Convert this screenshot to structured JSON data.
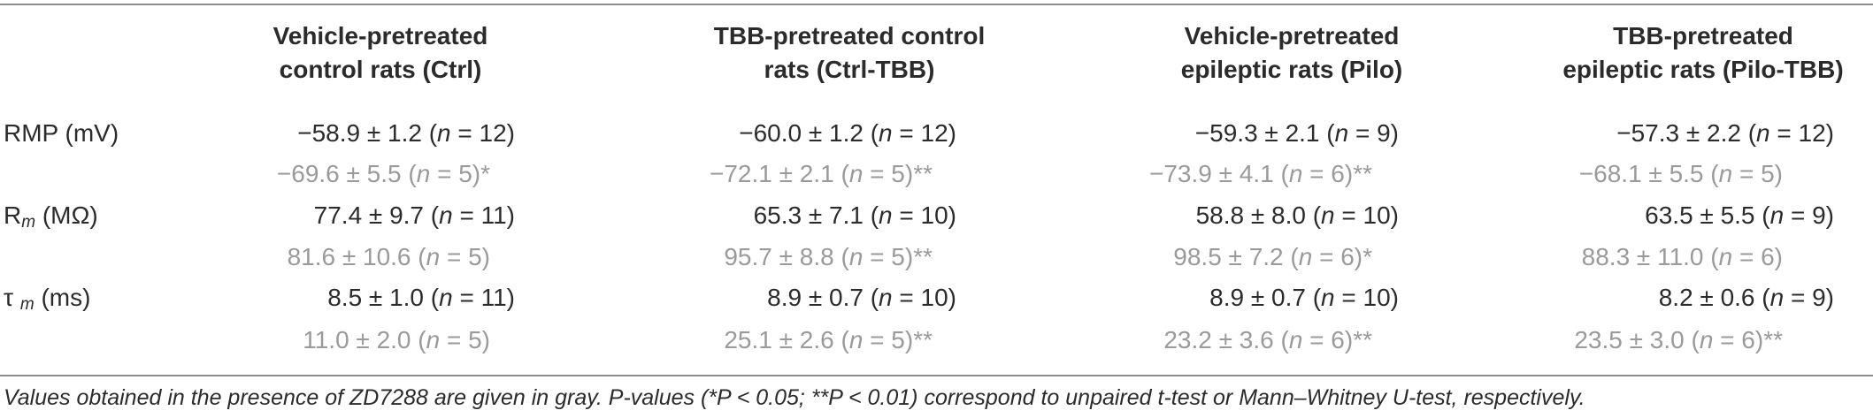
{
  "columns": [
    {
      "line1": "Vehicle-pretreated",
      "line2": "control rats (Ctrl)"
    },
    {
      "line1": "TBB-pretreated control",
      "line2": "rats (Ctrl-TBB)"
    },
    {
      "line1": "Vehicle-pretreated",
      "line2": "epileptic rats (Pilo)"
    },
    {
      "line1": "TBB-pretreated",
      "line2": "epileptic rats (Pilo-TBB)"
    }
  ],
  "rows": [
    {
      "label_main": "RMP (mV)",
      "label_sub": "",
      "label_unit": "",
      "values": [
        "−58.9 ± 1.2 (n  =  12)",
        "−60.0 ± 1.2 (n  =  12)",
        "−59.3 ± 2.1 (n  =  9)",
        "−57.3 ± 2.2 (n  =  12)"
      ],
      "gray_values": [
        "−69.6 ± 5.5 (n = 5)*",
        "−72.1 ± 2.1 (n = 5)**",
        "−73.9 ± 4.1 (n = 6)**",
        "−68.1 ± 5.5 (n = 5)"
      ]
    },
    {
      "label_main": "R",
      "label_sub": "m",
      "label_unit": " (MΩ)",
      "values": [
        "77.4 ± 9.7 (n  =  11)",
        "65.3 ± 7.1 (n  =  10)",
        "58.8 ± 8.0 (n  =  10)",
        "63.5 ± 5.5 (n  =  9)"
      ],
      "gray_values": [
        "81.6 ± 10.6 (n = 5)",
        "95.7 ± 8.8 (n = 5)**",
        "98.5 ± 7.2 (n = 6)*",
        "88.3 ± 11.0 (n = 6)"
      ]
    },
    {
      "label_main": "τ ",
      "label_sub": "m",
      "label_unit": " (ms)",
      "values": [
        "8.5 ± 1.0 (n  =  11)",
        "8.9 ± 0.7 (n  =  10)",
        "8.9 ± 0.7 (n  =  10)",
        "8.2 ± 0.6 (n  =  9)"
      ],
      "gray_values": [
        "11.0 ± 2.0 (n = 5)",
        "25.1 ± 2.6 (n = 5)**",
        "23.2 ± 3.6 (n = 6)**",
        "23.5 ± 3.0 (n = 6)**"
      ]
    }
  ],
  "footnote": "Values obtained in the presence of ZD7288 are given in gray. P-values (*P < 0.05; **P < 0.01) correspond to unpaired t-test or Mann–Whitney U-test, respectively.",
  "colors": {
    "text": "#2b2b2b",
    "gray_text": "#9a9a9a",
    "rule": "#8c8c8c"
  }
}
